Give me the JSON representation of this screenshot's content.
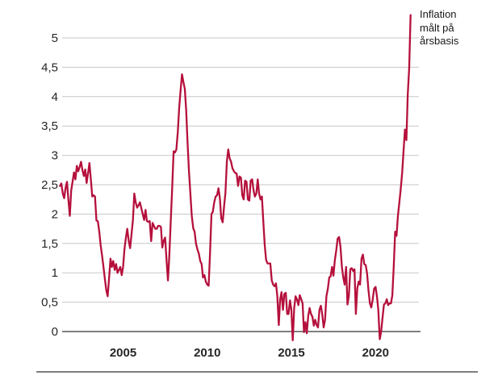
{
  "chart_data": {
    "type": "line",
    "title": "",
    "xlabel": "",
    "ylabel": "",
    "legend_text": "Inflation\nmålt på\nårsbasis",
    "legend_position": "top-right",
    "grid": "horizontal gridlines at 0.5 steps",
    "ylim": [
      0,
      5.5
    ],
    "yticks": [
      "0",
      "0,5",
      "1",
      "1,5",
      "2",
      "2,5",
      "3",
      "3,5",
      "4",
      "4,5",
      "5"
    ],
    "ytick_values": [
      0,
      0.5,
      1,
      1.5,
      2,
      2.5,
      3,
      3.5,
      4,
      4.5,
      5
    ],
    "xticks": [
      "2005",
      "2010",
      "2015",
      "2020"
    ],
    "xtick_values": [
      2005,
      2010,
      2015,
      2020
    ],
    "colors": {
      "line": "#b5103c",
      "grid": "#c7c7c7",
      "axis": "#333333",
      "separator": "#333333",
      "text": "#262626"
    },
    "series": [
      {
        "name": "Inflation målt på årsbasis",
        "unit": "percent",
        "frequency": "monthly",
        "start": "2001-04",
        "end": "2022-02",
        "values_by_year": {
          "2001": [
            null,
            null,
            null,
            2.48,
            2.52,
            2.35,
            2.27,
            2.45,
            2.55,
            2.25,
            1.97,
            2.4
          ],
          "2002": [
            2.55,
            2.71,
            2.59,
            2.82,
            2.73,
            2.8,
            2.89,
            2.75,
            2.65,
            2.76,
            2.53,
            2.7
          ],
          "2003": [
            2.87,
            2.6,
            2.3,
            2.32,
            2.3,
            1.89,
            1.88,
            1.7,
            1.47,
            1.3,
            1.1,
            0.9
          ],
          "2004": [
            0.7,
            0.6,
            0.9,
            1.24,
            1.1,
            1.2,
            1.05,
            1.15,
            1.0,
            1.05,
            1.1,
            0.96
          ],
          "2005": [
            1.1,
            1.4,
            1.6,
            1.75,
            1.55,
            1.42,
            1.65,
            1.9,
            2.35,
            2.2,
            2.11,
            2.15
          ],
          "2006": [
            2.2,
            2.1,
            2.0,
            1.9,
            2.07,
            1.88,
            1.87,
            1.88,
            1.54,
            1.85,
            1.8,
            1.75
          ],
          "2007": [
            1.75,
            1.8,
            1.8,
            1.78,
            1.43,
            1.55,
            1.6,
            1.2,
            0.87,
            1.3,
            1.9,
            2.43
          ],
          "2008": [
            3.07,
            3.05,
            3.1,
            3.4,
            3.81,
            4.1,
            4.38,
            4.25,
            4.13,
            3.76,
            3.21,
            2.71
          ],
          "2009": [
            2.34,
            1.97,
            1.76,
            1.7,
            1.5,
            1.4,
            1.33,
            1.2,
            1.15,
            0.92,
            0.96,
            0.85
          ],
          "2010": [
            0.8,
            0.78,
            1.33,
            2.0,
            2.04,
            2.2,
            2.3,
            2.32,
            2.44,
            2.27,
            1.93,
            1.86
          ],
          "2011": [
            2.13,
            2.36,
            2.9,
            3.1,
            2.95,
            2.89,
            2.78,
            2.73,
            2.7,
            2.69,
            2.48,
            2.64
          ],
          "2012": [
            2.62,
            2.32,
            2.25,
            2.57,
            2.55,
            2.25,
            2.23,
            2.57,
            2.59,
            2.41,
            2.3,
            2.35
          ],
          "2013": [
            2.59,
            2.35,
            2.25,
            2.3,
            1.88,
            1.47,
            1.22,
            1.16,
            1.16,
            1.16,
            0.87,
            0.8
          ],
          "2014": [
            0.77,
            0.82,
            0.6,
            0.11,
            0.55,
            0.67,
            0.37,
            0.64,
            0.66,
            0.3,
            0.3,
            0.53
          ],
          "2015": [
            0.37,
            -0.15,
            0.4,
            0.6,
            0.55,
            0.45,
            0.62,
            0.55,
            0.48,
            -0.01,
            0.16,
            -0.03
          ],
          "2016": [
            0.27,
            0.4,
            0.3,
            0.25,
            0.1,
            0.2,
            0.11,
            0.07,
            0.37,
            0.44,
            0.3,
            0.07
          ],
          "2017": [
            0.2,
            0.6,
            0.73,
            0.92,
            0.94,
            1.1,
            0.95,
            1.22,
            1.38,
            1.58,
            1.61,
            1.45
          ],
          "2018": [
            1.1,
            0.92,
            0.8,
            1.1,
            0.46,
            0.6,
            1.06,
            1.08,
            1.03,
            1.06,
            0.3,
            0.74
          ],
          "2019": [
            0.85,
            0.8,
            1.24,
            1.31,
            1.15,
            1.13,
            0.99,
            0.69,
            0.48,
            0.41,
            0.55,
            0.73
          ],
          "2020": [
            0.76,
            0.6,
            0.37,
            -0.13,
            0.0,
            0.23,
            0.46,
            0.48,
            0.55,
            0.45,
            0.48,
            0.48
          ],
          "2021": [
            0.62,
            1.1,
            1.7,
            1.63,
            1.97,
            2.2,
            2.43,
            2.71,
            3.08,
            3.44,
            3.26,
            4.04
          ],
          "2022": [
            4.5,
            5.39,
            null,
            null,
            null,
            null,
            null,
            null,
            null,
            null,
            null,
            null
          ]
        }
      }
    ]
  }
}
